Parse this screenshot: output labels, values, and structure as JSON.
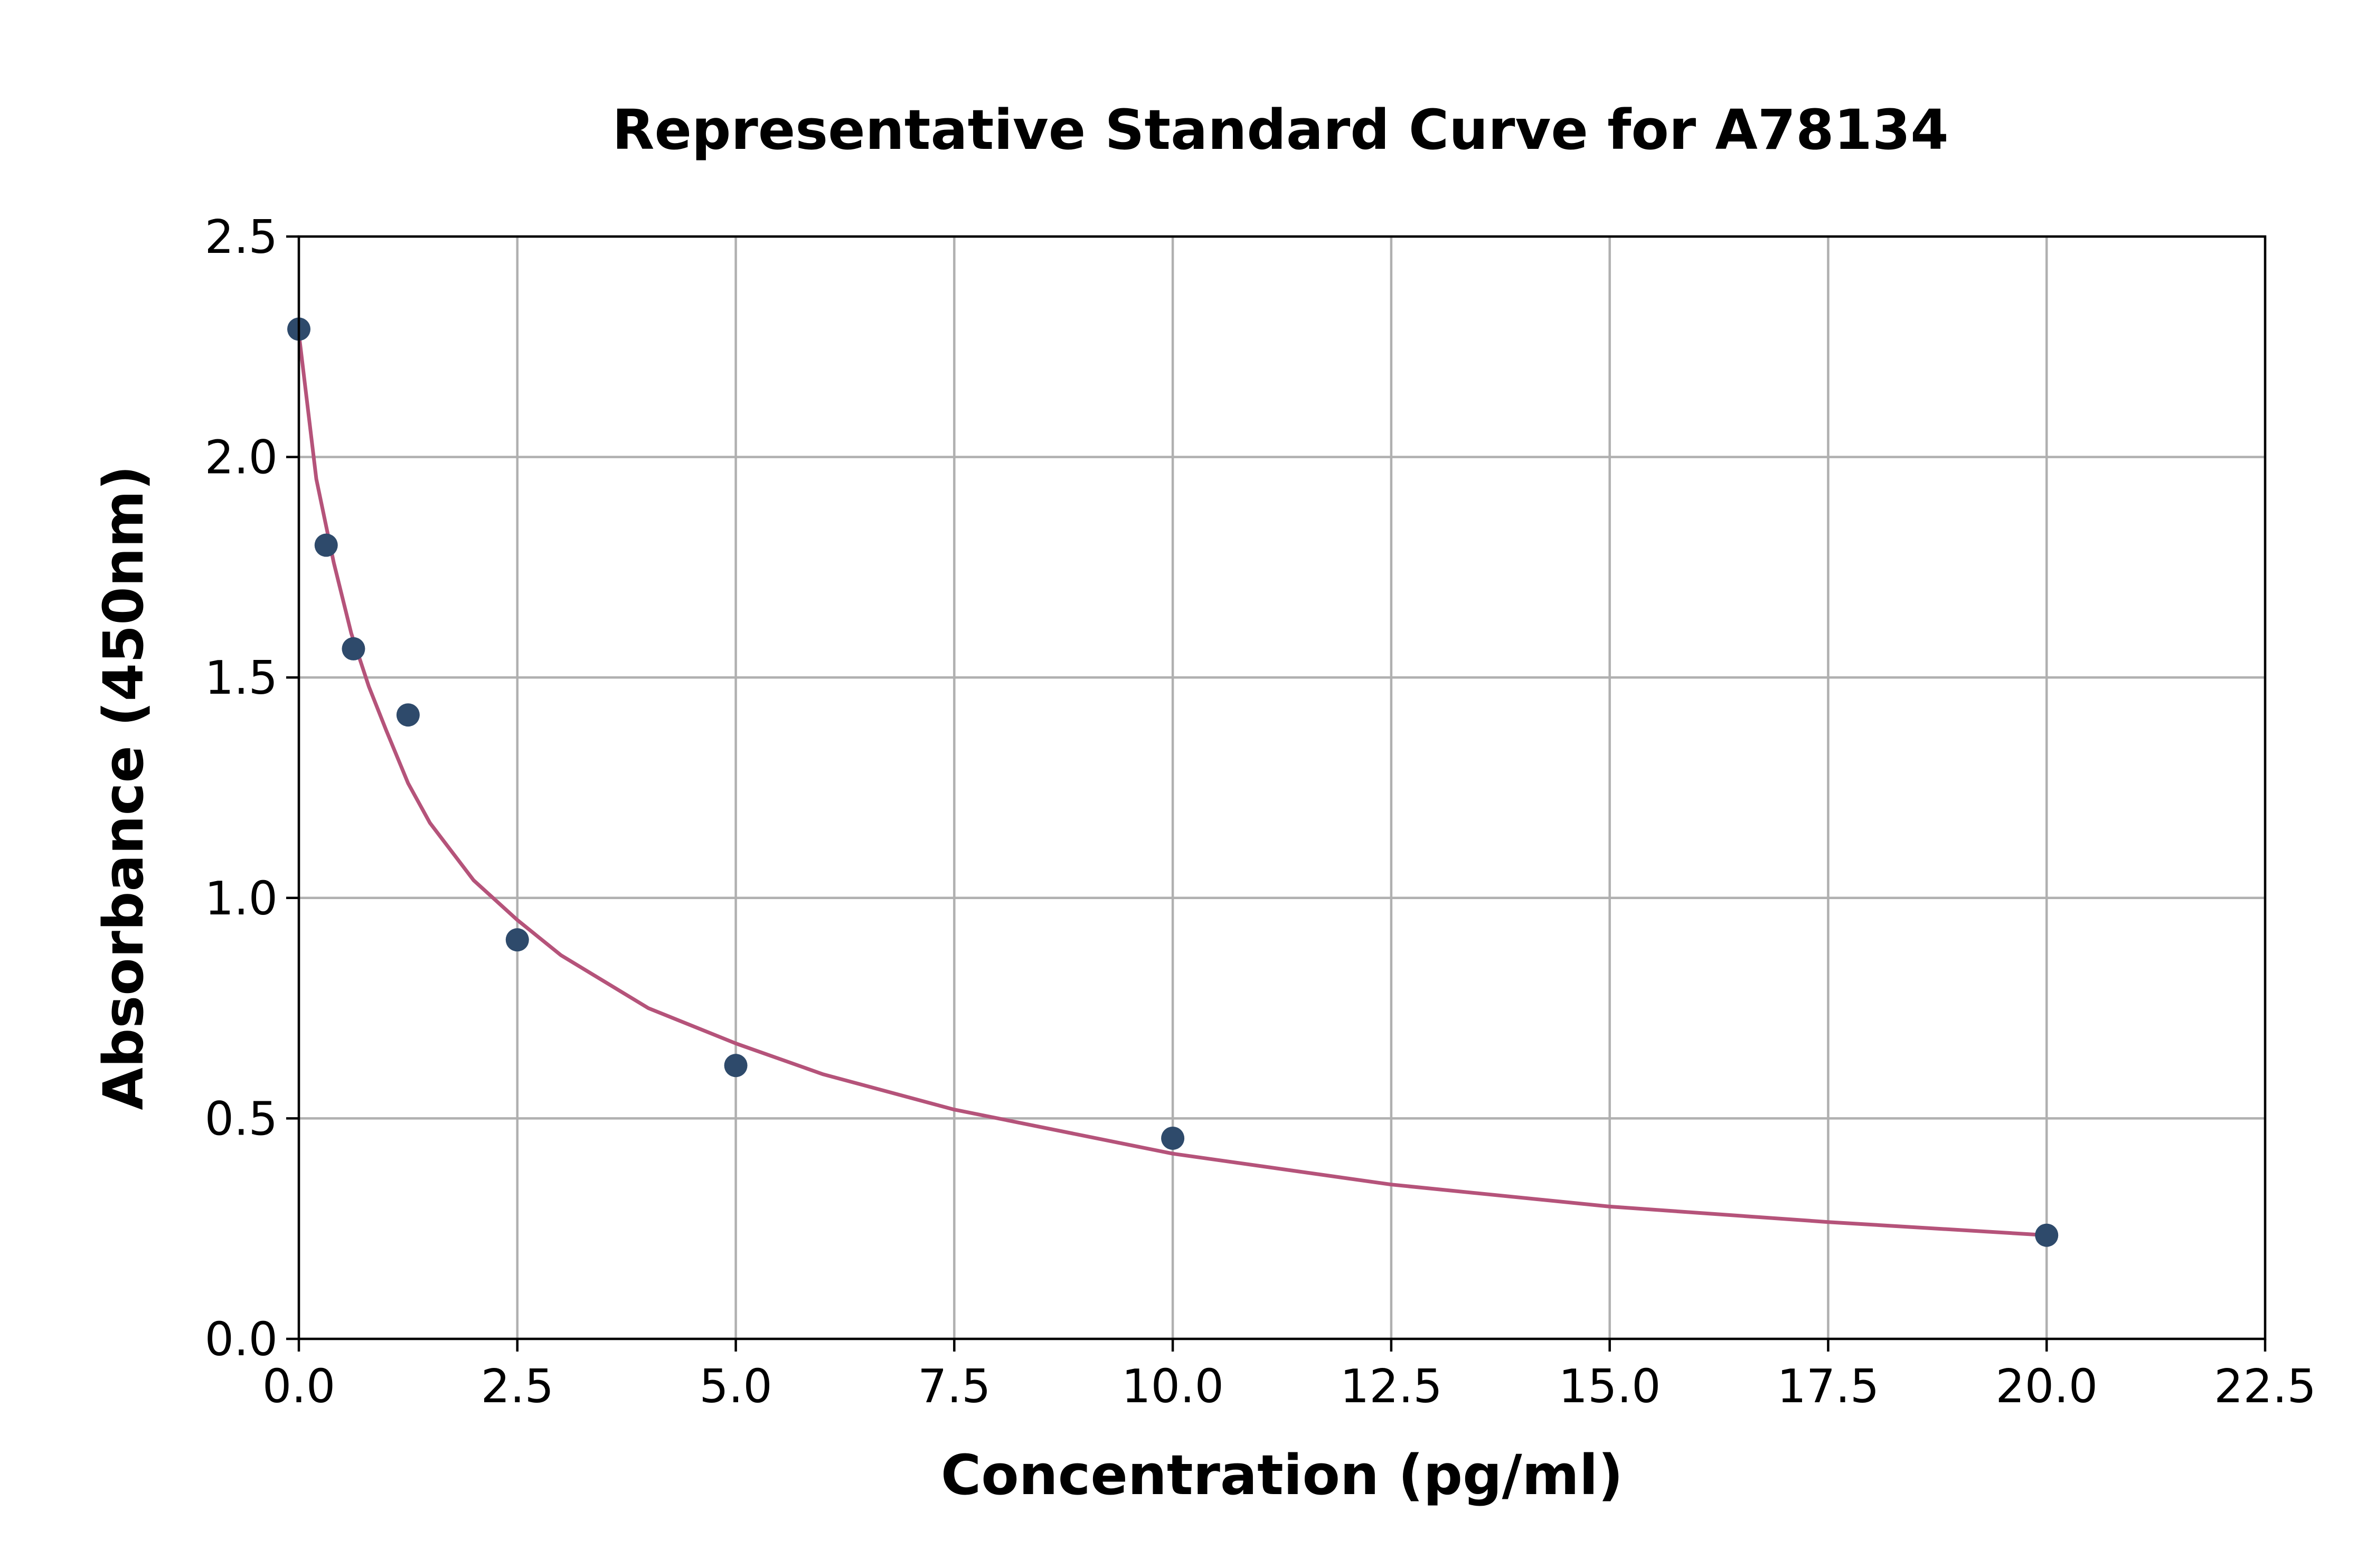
{
  "chart_data": {
    "type": "scatter",
    "title": "Representative Standard Curve for A78134",
    "xlabel": "Concentration (pg/ml)",
    "ylabel": "Absorbance (450nm)",
    "xlim": [
      0,
      22.5
    ],
    "ylim": [
      0,
      2.5
    ],
    "x_ticks": [
      "0.0",
      "2.5",
      "5.0",
      "7.5",
      "10.0",
      "12.5",
      "15.0",
      "17.5",
      "20.0",
      "22.5"
    ],
    "y_ticks": [
      "0.0",
      "0.5",
      "1.0",
      "1.5",
      "2.0",
      "2.5"
    ],
    "grid": true,
    "series": [
      {
        "kind": "points",
        "color": "#2e4a6b",
        "x": [
          0,
          0.3125,
          0.625,
          1.25,
          2.5,
          5,
          10,
          20
        ],
        "y": [
          2.29,
          1.8,
          1.565,
          1.415,
          0.905,
          0.62,
          0.455,
          0.235
        ]
      },
      {
        "kind": "fit-line",
        "color": "#b5537a",
        "x": [
          0,
          0.2,
          0.4,
          0.6,
          0.8,
          1,
          1.25,
          1.5,
          2,
          2.5,
          3,
          4,
          5,
          6,
          7.5,
          10,
          12.5,
          15,
          17.5,
          20
        ],
        "y": [
          2.28,
          1.95,
          1.76,
          1.6,
          1.48,
          1.38,
          1.26,
          1.17,
          1.04,
          0.95,
          0.87,
          0.75,
          0.67,
          0.6,
          0.52,
          0.42,
          0.35,
          0.3,
          0.265,
          0.235
        ]
      }
    ]
  }
}
